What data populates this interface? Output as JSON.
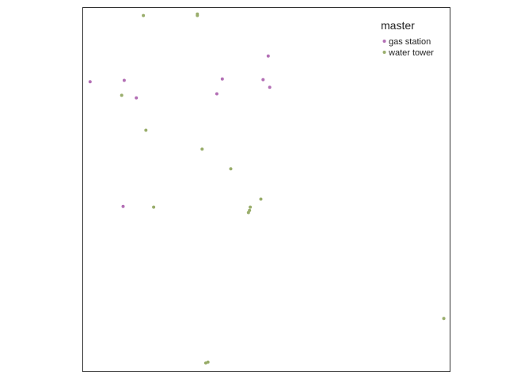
{
  "chart_data": {
    "type": "scatter",
    "title": "",
    "xlabel": "",
    "ylabel": "",
    "grid": false,
    "axes_visible": false,
    "xlim": [
      0,
      100
    ],
    "ylim": [
      0,
      100
    ],
    "legend": {
      "title": "master",
      "placement": "top-right"
    },
    "series": [
      {
        "name": "gas station",
        "color": "#b36fb5",
        "points": [
          {
            "x": 2,
            "y": 79.6
          },
          {
            "x": 11,
            "y": 45.4
          },
          {
            "x": 11.3,
            "y": 80
          },
          {
            "x": 14.6,
            "y": 75.2
          },
          {
            "x": 36.5,
            "y": 76.3
          },
          {
            "x": 38,
            "y": 80.4
          },
          {
            "x": 49.1,
            "y": 80.2
          },
          {
            "x": 50.5,
            "y": 86.7
          },
          {
            "x": 50.9,
            "y": 78.1
          }
        ]
      },
      {
        "name": "water tower",
        "color": "#99ad6b",
        "points": [
          {
            "x": 10.6,
            "y": 75.9
          },
          {
            "x": 16.5,
            "y": 97.8
          },
          {
            "x": 17.2,
            "y": 66.3
          },
          {
            "x": 19.3,
            "y": 45.2
          },
          {
            "x": 31.2,
            "y": 97.8
          },
          {
            "x": 31.2,
            "y": 98.2
          },
          {
            "x": 32.5,
            "y": 61.1
          },
          {
            "x": 33.5,
            "y": 2.4
          },
          {
            "x": 34.1,
            "y": 2.6
          },
          {
            "x": 40.3,
            "y": 55.7
          },
          {
            "x": 45.1,
            "y": 43.7
          },
          {
            "x": 45.4,
            "y": 44.3
          },
          {
            "x": 45.6,
            "y": 45.2
          },
          {
            "x": 48.5,
            "y": 47.4
          },
          {
            "x": 98.3,
            "y": 14.6
          }
        ]
      }
    ]
  }
}
